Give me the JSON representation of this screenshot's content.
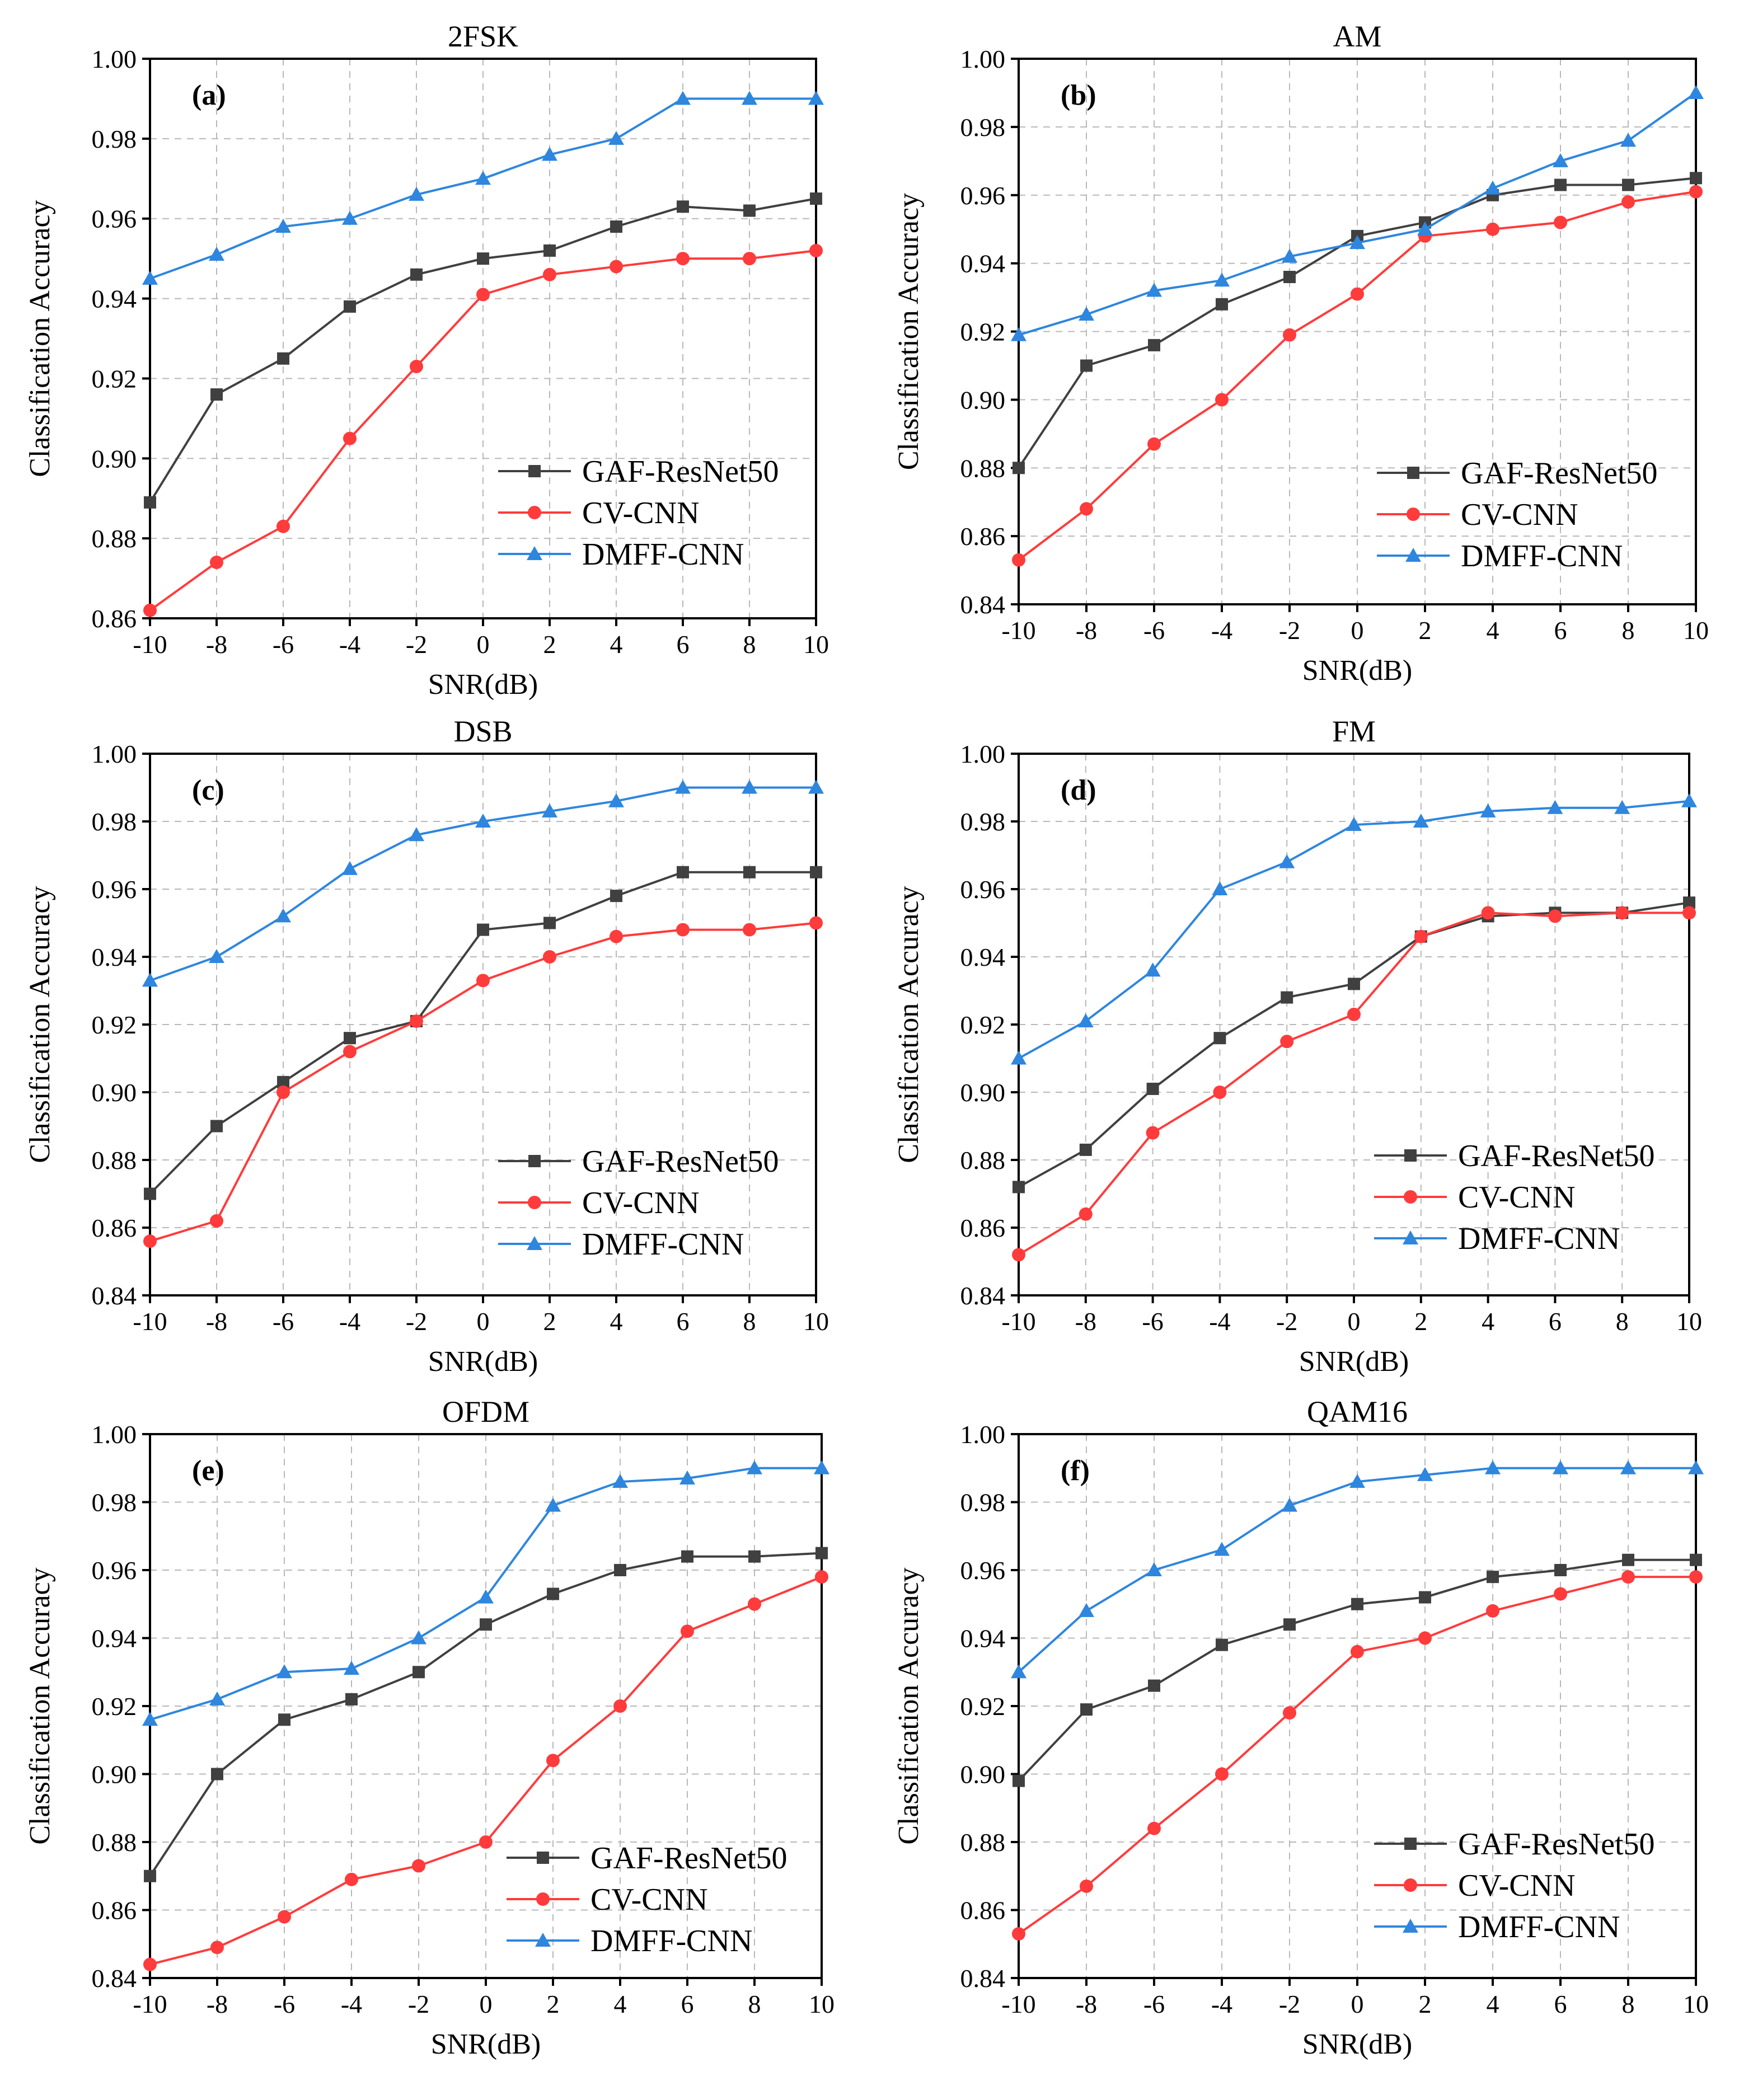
{
  "chart_data": [
    {
      "type": "line",
      "title": "2FSK",
      "panel_label": "(a)",
      "xlabel": "SNR(dB)",
      "ylabel": "Classification Accuracy",
      "x": [
        -10,
        -8,
        -6,
        -4,
        -2,
        0,
        2,
        4,
        6,
        8,
        10
      ],
      "xticks": [
        "-10",
        "-8",
        "-6",
        "-4",
        "-2",
        "0",
        "2",
        "4",
        "6",
        "8",
        "10"
      ],
      "ylim": [
        0.86,
        1.0
      ],
      "yticks": [
        "0.86",
        "0.88",
        "0.90",
        "0.92",
        "0.94",
        "0.96",
        "0.98",
        "1.00"
      ],
      "series": [
        {
          "name": "GAF-ResNet50",
          "color": "#404040",
          "marker": "square",
          "values": [
            0.889,
            0.916,
            0.925,
            0.938,
            0.946,
            0.95,
            0.952,
            0.958,
            0.963,
            0.962,
            0.965
          ]
        },
        {
          "name": "CV-CNN",
          "color": "#ff3b3b",
          "marker": "circle",
          "values": [
            0.862,
            0.874,
            0.883,
            0.905,
            0.923,
            0.941,
            0.946,
            0.948,
            0.95,
            0.95,
            0.952
          ]
        },
        {
          "name": "DMFF-CNN",
          "color": "#2e86de",
          "marker": "triangle",
          "values": [
            0.945,
            0.951,
            0.958,
            0.96,
            0.966,
            0.97,
            0.976,
            0.98,
            0.99,
            0.99,
            0.99
          ]
        }
      ]
    },
    {
      "type": "line",
      "title": "AM",
      "panel_label": "(b)",
      "xlabel": "SNR(dB)",
      "ylabel": "Classification Accuracy",
      "x": [
        -10,
        -8,
        -6,
        -4,
        -2,
        0,
        2,
        4,
        6,
        8,
        10
      ],
      "xticks": [
        "-10",
        "-8",
        "-6",
        "-4",
        "-2",
        "0",
        "2",
        "4",
        "6",
        "8",
        "10"
      ],
      "ylim": [
        0.84,
        1.0
      ],
      "yticks": [
        "0.84",
        "0.86",
        "0.88",
        "0.90",
        "0.92",
        "0.94",
        "0.96",
        "0.98",
        "1.00"
      ],
      "series": [
        {
          "name": "GAF-ResNet50",
          "color": "#404040",
          "marker": "square",
          "values": [
            0.88,
            0.91,
            0.916,
            0.928,
            0.936,
            0.948,
            0.952,
            0.96,
            0.963,
            0.963,
            0.965
          ]
        },
        {
          "name": "CV-CNN",
          "color": "#ff3b3b",
          "marker": "circle",
          "values": [
            0.853,
            0.868,
            0.887,
            0.9,
            0.919,
            0.931,
            0.948,
            0.95,
            0.952,
            0.958,
            0.961
          ]
        },
        {
          "name": "DMFF-CNN",
          "color": "#2e86de",
          "marker": "triangle",
          "values": [
            0.919,
            0.925,
            0.932,
            0.935,
            0.942,
            0.946,
            0.95,
            0.962,
            0.97,
            0.976,
            0.99
          ]
        }
      ]
    },
    {
      "type": "line",
      "title": "DSB",
      "panel_label": "(c)",
      "xlabel": "SNR(dB)",
      "ylabel": "Classification Accuracy",
      "x": [
        -10,
        -8,
        -6,
        -4,
        -2,
        0,
        2,
        4,
        6,
        8,
        10
      ],
      "xticks": [
        "-10",
        "-8",
        "-6",
        "-4",
        "-2",
        "0",
        "2",
        "4",
        "6",
        "8",
        "10"
      ],
      "ylim": [
        0.84,
        1.0
      ],
      "yticks": [
        "0.84",
        "0.86",
        "0.88",
        "0.90",
        "0.92",
        "0.94",
        "0.96",
        "0.98",
        "1.00"
      ],
      "series": [
        {
          "name": "GAF-ResNet50",
          "color": "#404040",
          "marker": "square",
          "values": [
            0.87,
            0.89,
            0.903,
            0.916,
            0.921,
            0.948,
            0.95,
            0.958,
            0.965,
            0.965,
            0.965
          ]
        },
        {
          "name": "CV-CNN",
          "color": "#ff3b3b",
          "marker": "circle",
          "values": [
            0.856,
            0.862,
            0.9,
            0.912,
            0.921,
            0.933,
            0.94,
            0.946,
            0.948,
            0.948,
            0.95
          ]
        },
        {
          "name": "DMFF-CNN",
          "color": "#2e86de",
          "marker": "triangle",
          "values": [
            0.933,
            0.94,
            0.952,
            0.966,
            0.976,
            0.98,
            0.983,
            0.986,
            0.99,
            0.99,
            0.99
          ]
        }
      ]
    },
    {
      "type": "line",
      "title": "FM",
      "panel_label": "(d)",
      "xlabel": "SNR(dB)",
      "ylabel": "Classification Accuracy",
      "x": [
        -10,
        -8,
        -6,
        -4,
        -2,
        0,
        2,
        4,
        6,
        8,
        10
      ],
      "xticks": [
        "-10",
        "-8",
        "-6",
        "-4",
        "-2",
        "0",
        "2",
        "4",
        "6",
        "8",
        "10"
      ],
      "ylim": [
        0.84,
        1.0
      ],
      "yticks": [
        "0.84",
        "0.86",
        "0.88",
        "0.90",
        "0.92",
        "0.94",
        "0.96",
        "0.98",
        "1.00"
      ],
      "series": [
        {
          "name": "GAF-ResNet50",
          "color": "#404040",
          "marker": "square",
          "values": [
            0.872,
            0.883,
            0.901,
            0.916,
            0.928,
            0.932,
            0.946,
            0.952,
            0.953,
            0.953,
            0.956
          ]
        },
        {
          "name": "CV-CNN",
          "color": "#ff3b3b",
          "marker": "circle",
          "values": [
            0.852,
            0.864,
            0.888,
            0.9,
            0.915,
            0.923,
            0.946,
            0.953,
            0.952,
            0.953,
            0.953
          ]
        },
        {
          "name": "DMFF-CNN",
          "color": "#2e86de",
          "marker": "triangle",
          "values": [
            0.91,
            0.921,
            0.936,
            0.96,
            0.968,
            0.979,
            0.98,
            0.983,
            0.984,
            0.984,
            0.986
          ]
        }
      ]
    },
    {
      "type": "line",
      "title": "OFDM",
      "panel_label": "(e)",
      "xlabel": "SNR(dB)",
      "ylabel": "Classification Accuracy",
      "x": [
        -10,
        -8,
        -6,
        -4,
        -2,
        0,
        2,
        4,
        6,
        8,
        10
      ],
      "xticks": [
        "-10",
        "-8",
        "-6",
        "-4",
        "-2",
        "0",
        "2",
        "4",
        "6",
        "8",
        "10"
      ],
      "ylim": [
        0.84,
        1.0
      ],
      "yticks": [
        "0.84",
        "0.86",
        "0.88",
        "0.90",
        "0.92",
        "0.94",
        "0.96",
        "0.98",
        "1.00"
      ],
      "series": [
        {
          "name": "GAF-ResNet50",
          "color": "#404040",
          "marker": "square",
          "values": [
            0.87,
            0.9,
            0.916,
            0.922,
            0.93,
            0.944,
            0.953,
            0.96,
            0.964,
            0.964,
            0.965
          ]
        },
        {
          "name": "CV-CNN",
          "color": "#ff3b3b",
          "marker": "circle",
          "values": [
            0.844,
            0.849,
            0.858,
            0.869,
            0.873,
            0.88,
            0.904,
            0.92,
            0.942,
            0.95,
            0.958
          ]
        },
        {
          "name": "DMFF-CNN",
          "color": "#2e86de",
          "marker": "triangle",
          "values": [
            0.916,
            0.922,
            0.93,
            0.931,
            0.94,
            0.952,
            0.979,
            0.986,
            0.987,
            0.99,
            0.99
          ]
        }
      ]
    },
    {
      "type": "line",
      "title": "QAM16",
      "panel_label": "(f)",
      "xlabel": "SNR(dB)",
      "ylabel": "Classification Accuracy",
      "x": [
        -10,
        -8,
        -6,
        -4,
        -2,
        0,
        2,
        4,
        6,
        8,
        10
      ],
      "xticks": [
        "-10",
        "-8",
        "-6",
        "-4",
        "-2",
        "0",
        "2",
        "4",
        "6",
        "8",
        "10"
      ],
      "ylim": [
        0.84,
        1.0
      ],
      "yticks": [
        "0.84",
        "0.86",
        "0.88",
        "0.90",
        "0.92",
        "0.94",
        "0.96",
        "0.98",
        "1.00"
      ],
      "series": [
        {
          "name": "GAF-ResNet50",
          "color": "#404040",
          "marker": "square",
          "values": [
            0.898,
            0.919,
            0.926,
            0.938,
            0.944,
            0.95,
            0.952,
            0.958,
            0.96,
            0.963,
            0.963
          ]
        },
        {
          "name": "CV-CNN",
          "color": "#ff3b3b",
          "marker": "circle",
          "values": [
            0.853,
            0.867,
            0.884,
            0.9,
            0.918,
            0.936,
            0.94,
            0.948,
            0.953,
            0.958,
            0.958
          ]
        },
        {
          "name": "DMFF-CNN",
          "color": "#2e86de",
          "marker": "triangle",
          "values": [
            0.93,
            0.948,
            0.96,
            0.966,
            0.979,
            0.986,
            0.988,
            0.99,
            0.99,
            0.99,
            0.99
          ]
        }
      ]
    }
  ]
}
